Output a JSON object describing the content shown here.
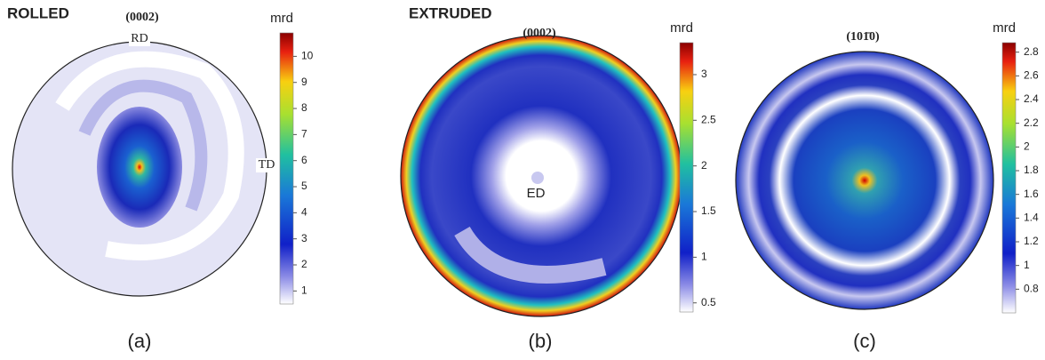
{
  "panels": [
    {
      "section": "ROLLED",
      "plane": "(0002)",
      "directions": [
        "RD",
        "TD"
      ],
      "caption": "(a)",
      "colorbar": {
        "title": "mrd",
        "lim": [
          0.5,
          10.9
        ],
        "ticks": [
          1,
          2,
          3,
          4,
          5,
          6,
          7,
          8,
          9,
          10
        ]
      }
    },
    {
      "section": "EXTRUDED",
      "plane": "(0002)",
      "directions": [
        "ED"
      ],
      "caption": "(b)",
      "colorbar": {
        "title": "mrd",
        "lim": [
          0.4,
          3.35
        ],
        "ticks": [
          0.5,
          1,
          1.5,
          2,
          2.5,
          3
        ]
      }
    },
    {
      "plane": "(101̄0)",
      "caption": "(c)",
      "colorbar": {
        "title": "mrd",
        "lim": [
          0.6,
          2.88
        ],
        "ticks": [
          0.8,
          1,
          1.2,
          1.4,
          1.6,
          1.8,
          2,
          2.2,
          2.4,
          2.6,
          2.8
        ]
      }
    }
  ]
}
